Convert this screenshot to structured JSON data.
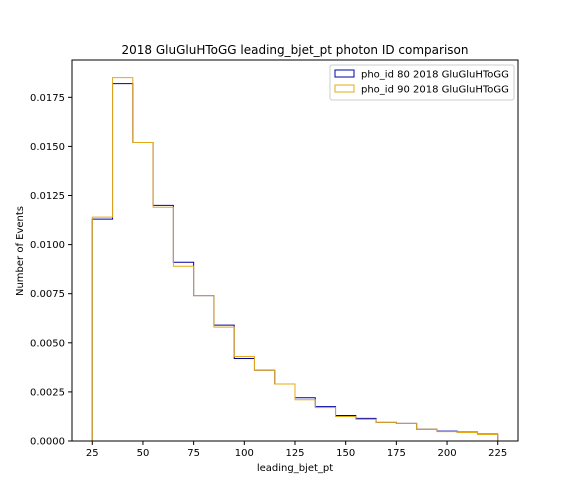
{
  "chart_data": {
    "type": "line",
    "style": "step-histogram",
    "title": "2018 GluGluHToGG leading_bjet_pt photon ID comparison",
    "xlabel": "leading_bjet_pt",
    "ylabel": "Number of Events",
    "xlim": [
      15,
      235
    ],
    "ylim": [
      0,
      0.0194
    ],
    "xticks": [
      25,
      50,
      75,
      100,
      125,
      150,
      175,
      200,
      225
    ],
    "xtick_labels": [
      "25",
      "50",
      "75",
      "100",
      "125",
      "150",
      "175",
      "200",
      "225"
    ],
    "yticks": [
      0,
      0.0025,
      0.005,
      0.0075,
      0.01,
      0.0125,
      0.015,
      0.0175
    ],
    "ytick_labels": [
      "0.0000",
      "0.0025",
      "0.0050",
      "0.0075",
      "0.0100",
      "0.0125",
      "0.0150",
      "0.0175"
    ],
    "bin_edges": [
      25,
      35,
      45,
      55,
      65,
      75,
      85,
      95,
      105,
      115,
      125,
      135,
      145,
      155,
      165,
      175,
      185,
      195,
      205,
      215,
      225
    ],
    "legend_position": "top-right",
    "series": [
      {
        "name": "pho_id 80 2018 GluGluHToGG",
        "color": "#0000aa",
        "values": [
          0.0113,
          0.0182,
          0.0152,
          0.012,
          0.0091,
          0.0074,
          0.0059,
          0.0042,
          0.0036,
          0.0029,
          0.0022,
          0.00175,
          0.0013,
          0.00115,
          0.00095,
          0.0009,
          0.0006,
          0.0005,
          0.00045,
          0.00035
        ]
      },
      {
        "name": "pho_id 90 2018 GluGluHToGG",
        "color": "#e6a817",
        "values": [
          0.0114,
          0.0185,
          0.0152,
          0.0119,
          0.0089,
          0.0074,
          0.0058,
          0.0043,
          0.0036,
          0.0029,
          0.0021,
          0.0017,
          0.00125,
          0.0011,
          0.00095,
          0.0009,
          0.0006,
          0.00048,
          0.00043,
          0.00033
        ]
      }
    ]
  }
}
